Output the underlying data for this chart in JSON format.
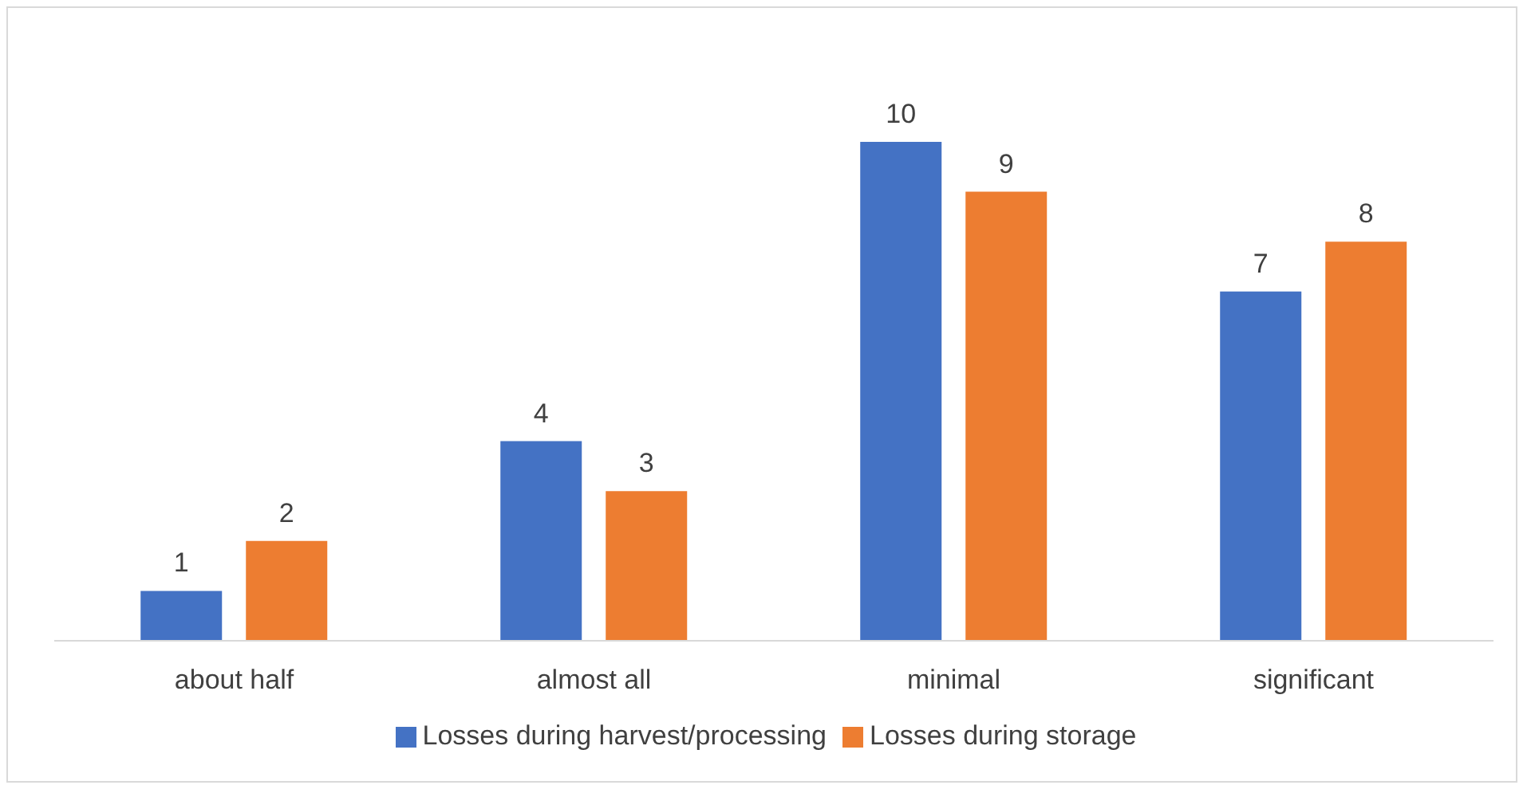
{
  "chart_data": {
    "type": "bar",
    "categories": [
      "about half",
      "almost all",
      "minimal",
      "significant"
    ],
    "series": [
      {
        "name": "Losses during harvest/processing",
        "color": "#4472c4",
        "values": [
          1,
          4,
          10,
          7
        ]
      },
      {
        "name": "Losses during storage",
        "color": "#ed7d31",
        "values": [
          2,
          3,
          9,
          8
        ]
      }
    ],
    "tick_labels": "x",
    "data_labels": true,
    "legend": "bottom",
    "grid": false
  }
}
